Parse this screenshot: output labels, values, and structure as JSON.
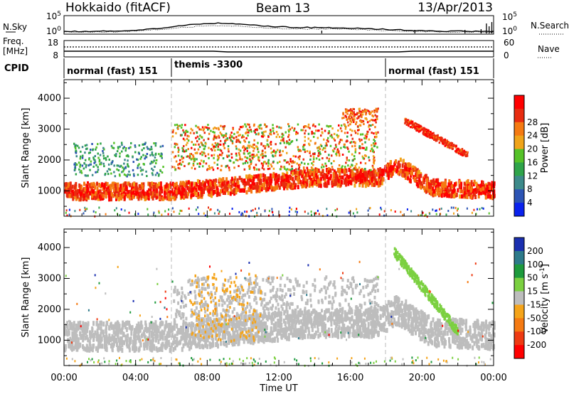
{
  "header": {
    "left": "Hokkaido (fitACF)",
    "center": "Beam 13",
    "right": "13/Apr/2013"
  },
  "noise_panel": {
    "left_label": "N.Sky",
    "right_label": "N.Search",
    "tick_top": "10^5",
    "tick_bottom": "10^0"
  },
  "freq_panel": {
    "left_label_1": "Freq.",
    "left_label_2": "[MHz]",
    "right_label": "Nave",
    "left_ticks": [
      "18",
      "8"
    ],
    "right_ticks": [
      "60",
      "0"
    ]
  },
  "cpid": {
    "label": "CPID",
    "segments": [
      {
        "label": "normal (fast) 151",
        "start_hour": 0,
        "end_hour": 6
      },
      {
        "label": "themis -3300",
        "start_hour": 6,
        "end_hour": 18
      },
      {
        "label": "normal (fast) 151",
        "start_hour": 18,
        "end_hour": 24
      }
    ]
  },
  "x_axis": {
    "label": "Time UT",
    "ticks": [
      "00:00",
      "04:00",
      "08:00",
      "12:00",
      "16:00",
      "20:00",
      "00:00"
    ]
  },
  "chart_data": [
    {
      "type": "heatmap",
      "name": "Power",
      "ylabel": "Slant Range [km]",
      "xlim_hours": [
        0,
        24
      ],
      "ylim": [
        180,
        4600
      ],
      "yticks": [
        1000,
        2000,
        3000,
        4000
      ],
      "colorbar": {
        "label": "Power [dB]",
        "ticks": [
          "4",
          "8",
          "12",
          "16",
          "20",
          "24",
          "28"
        ],
        "colors": [
          "#0a22ee",
          "#2c54b4",
          "#3d8a8a",
          "#2fa44a",
          "#55c228",
          "#f0a41a",
          "#f57a12",
          "#e82c10",
          "#ff0000"
        ]
      },
      "features": [
        {
          "region": "main near-range echo band",
          "hours": [
            0,
            24
          ],
          "range_km": [
            900,
            1600
          ],
          "power_dB": 28
        },
        {
          "region": "mid-range patchy echoes",
          "hours": [
            6,
            17
          ],
          "range_km": [
            1700,
            3200
          ],
          "power_dB": 20
        },
        {
          "region": "early low-power echoes",
          "hours": [
            0.5,
            5.5
          ],
          "range_km": [
            1600,
            2600
          ],
          "power_dB": 8
        },
        {
          "region": "descending evening band",
          "hours": [
            19,
            22.5
          ],
          "range_km": [
            2100,
            3300
          ],
          "power_dB": 26
        },
        {
          "region": "far-range patch",
          "hours": [
            15.5,
            17.5
          ],
          "range_km": [
            3200,
            3700
          ],
          "power_dB": 24
        }
      ]
    },
    {
      "type": "heatmap",
      "name": "Velocity",
      "ylabel": "Slant Range [km]",
      "xlim_hours": [
        0,
        24
      ],
      "ylim": [
        180,
        4600
      ],
      "yticks": [
        1000,
        2000,
        3000,
        4000
      ],
      "colorbar": {
        "label": "Velocity [m s^-1]",
        "ticks": [
          "200",
          "100",
          "50",
          "15",
          "-15",
          "-50",
          "-100",
          "-200"
        ],
        "colors": [
          "#1a2fb0",
          "#2d7a8a",
          "#1d9a3c",
          "#7bd040",
          "#bdbdbd",
          "#f5a41a",
          "#f57a12",
          "#ee3a12",
          "#ff0000"
        ]
      },
      "features": [
        {
          "region": "ground scatter band",
          "hours": [
            0,
            24
          ],
          "range_km": [
            800,
            2200
          ],
          "velocity": 0
        },
        {
          "region": "positive velocity streak",
          "hours": [
            18,
            22
          ],
          "range_km": [
            1300,
            4000
          ],
          "velocity": 50
        },
        {
          "region": "negative velocity patches",
          "hours": [
            7,
            11
          ],
          "range_km": [
            1000,
            3200
          ],
          "velocity": -80
        }
      ]
    }
  ]
}
